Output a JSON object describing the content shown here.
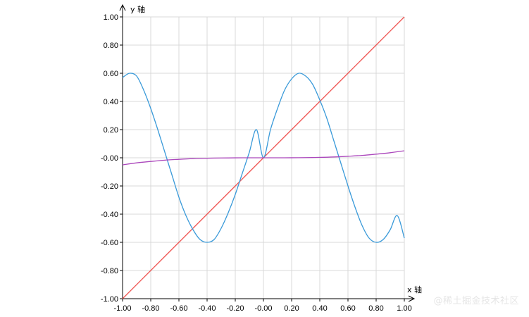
{
  "chart_data": {
    "type": "line",
    "xlabel": "x 轴",
    "ylabel": "y 轴",
    "xlim": [
      -1.0,
      1.0
    ],
    "ylim": [
      -1.0,
      1.0
    ],
    "grid": true,
    "x_ticks": [
      "-1.00",
      "-0.80",
      "-0.60",
      "-0.40",
      "-0.20",
      "-0.00",
      "0.20",
      "0.40",
      "0.60",
      "0.80",
      "1.00"
    ],
    "y_ticks": [
      "1.00",
      "0.80",
      "0.60",
      "0.40",
      "0.20",
      "-0.00",
      "-0.20",
      "-0.40",
      "-0.60",
      "-0.80",
      "-1.00"
    ],
    "series": [
      {
        "color": "#ef5350",
        "x": [
          -1.0,
          -0.8,
          -0.6,
          -0.4,
          -0.2,
          0.0,
          0.2,
          0.4,
          0.6,
          0.8,
          1.0
        ],
        "y": [
          -1.0,
          -0.8,
          -0.6,
          -0.4,
          -0.2,
          0.0,
          0.2,
          0.4,
          0.6,
          0.8,
          1.0
        ]
      },
      {
        "color": "#3a9ad9",
        "x": [
          -1.0,
          -0.95,
          -0.9,
          -0.85,
          -0.8,
          -0.75,
          -0.7,
          -0.65,
          -0.6,
          -0.55,
          -0.5,
          -0.45,
          -0.4,
          -0.35,
          -0.3,
          -0.25,
          -0.2,
          -0.15,
          -0.1,
          -0.05,
          0.0,
          0.05,
          0.1,
          0.15,
          0.2,
          0.25,
          0.3,
          0.35,
          0.4,
          0.45,
          0.5,
          0.55,
          0.6,
          0.65,
          0.7,
          0.75,
          0.8,
          0.85,
          0.9,
          0.95,
          1.0
        ],
        "y": [
          0.57,
          0.6,
          0.58,
          0.48,
          0.35,
          0.2,
          0.04,
          -0.12,
          -0.28,
          -0.41,
          -0.51,
          -0.58,
          -0.6,
          -0.58,
          -0.5,
          -0.39,
          -0.26,
          -0.11,
          0.04,
          0.2,
          0.0,
          0.2,
          0.35,
          0.48,
          0.56,
          0.6,
          0.58,
          0.52,
          0.41,
          0.28,
          0.12,
          -0.04,
          -0.2,
          -0.35,
          -0.48,
          -0.57,
          -0.6,
          -0.58,
          -0.51,
          -0.41,
          -0.57
        ]
      },
      {
        "color": "#ab47bc",
        "x": [
          -1.0,
          -0.9,
          -0.8,
          -0.7,
          -0.6,
          -0.5,
          -0.4,
          -0.3,
          -0.2,
          -0.1,
          0.0,
          0.1,
          0.2,
          0.3,
          0.4,
          0.5,
          0.6,
          0.7,
          0.8,
          0.9,
          1.0
        ],
        "y": [
          -0.05,
          -0.036,
          -0.026,
          -0.017,
          -0.011,
          -0.006,
          -0.003,
          -0.0014,
          -0.0004,
          -5e-05,
          0.0,
          5e-05,
          0.0004,
          0.0014,
          0.003,
          0.006,
          0.011,
          0.017,
          0.026,
          0.036,
          0.05
        ]
      }
    ]
  },
  "watermark": "@稀土掘金技术社区"
}
